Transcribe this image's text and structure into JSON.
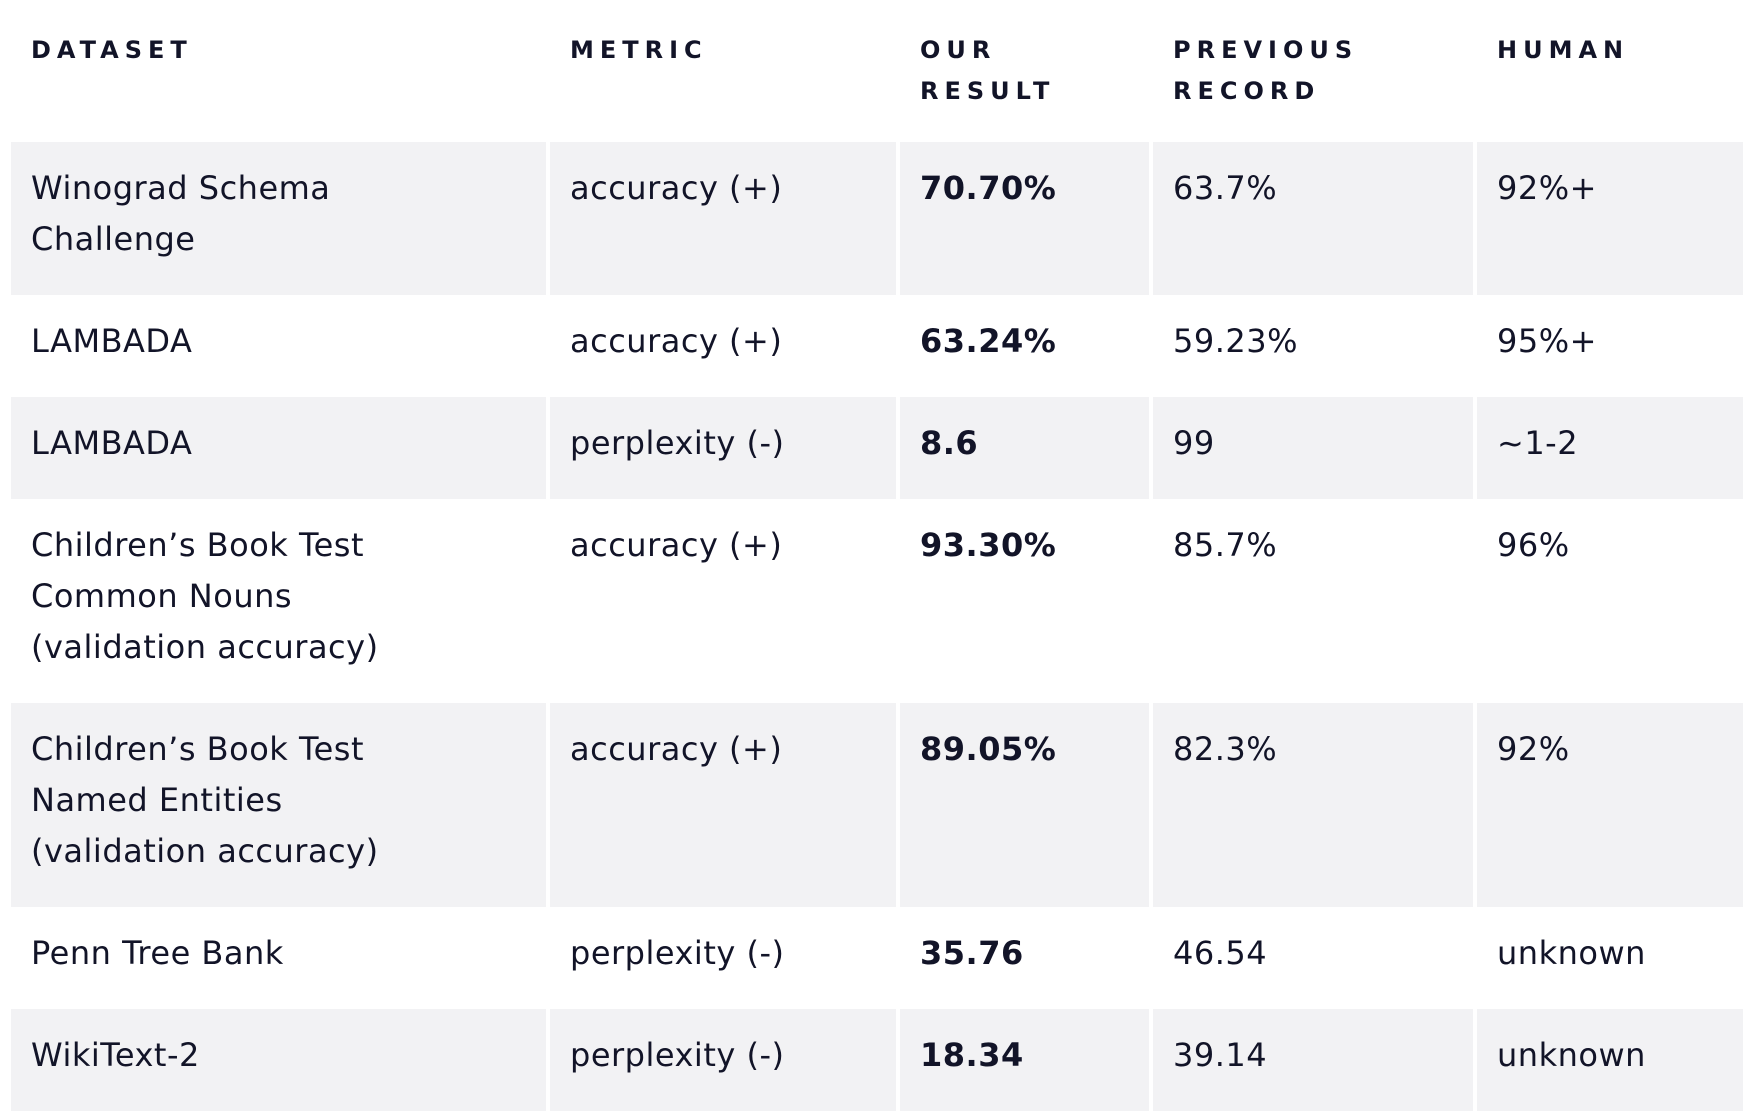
{
  "table": {
    "headers": {
      "dataset": "DATASET",
      "metric": "METRIC",
      "our_result": "OUR RESULT",
      "previous_record": "PREVIOUS RECORD",
      "human": "HUMAN"
    },
    "rows": [
      {
        "dataset": "Winograd Schema Challenge",
        "metric": "accuracy (+)",
        "our_result": "70.70%",
        "previous_record": "63.7%",
        "human": "92%+"
      },
      {
        "dataset": "LAMBADA",
        "metric": "accuracy (+)",
        "our_result": "63.24%",
        "previous_record": "59.23%",
        "human": "95%+"
      },
      {
        "dataset": "LAMBADA",
        "metric": "perplexity (-)",
        "our_result": "8.6",
        "previous_record": "99",
        "human": "~1-2"
      },
      {
        "dataset": "Children’s Book Test Common Nouns (validation accuracy)",
        "metric": "accuracy (+)",
        "our_result": "93.30%",
        "previous_record": "85.7%",
        "human": "96%"
      },
      {
        "dataset": "Children’s Book Test Named Entities (validation accuracy)",
        "metric": "accuracy (+)",
        "our_result": "89.05%",
        "previous_record": "82.3%",
        "human": "92%"
      },
      {
        "dataset": "Penn Tree Bank",
        "metric": "perplexity (-)",
        "our_result": "35.76",
        "previous_record": "46.54",
        "human": "unknown"
      },
      {
        "dataset": "WikiText-2",
        "metric": "perplexity (-)",
        "our_result": "18.34",
        "previous_record": "39.14",
        "human": "unknown"
      }
    ]
  },
  "colors": {
    "text": "#121428",
    "row_shade": "#f2f2f4",
    "background": "#ffffff"
  }
}
